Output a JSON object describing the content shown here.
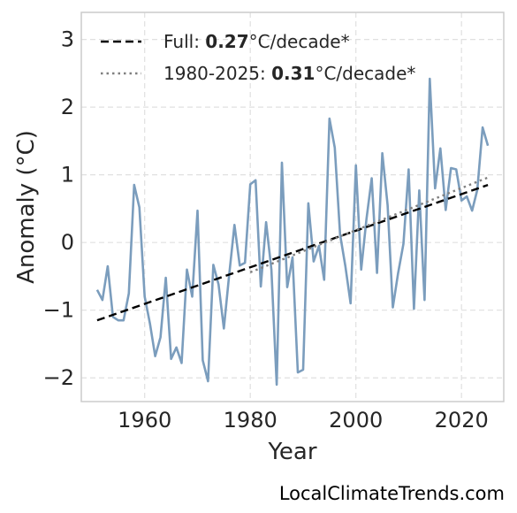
{
  "chart_data": {
    "type": "line",
    "xlabel": "Year",
    "ylabel": "Anomaly (°C)",
    "xlim": [
      1948,
      2028
    ],
    "ylim": [
      -2.35,
      3.4
    ],
    "xticks": [
      1960,
      1980,
      2000,
      2020
    ],
    "yticks": [
      -2,
      -1,
      0,
      1,
      2,
      3
    ],
    "ytick_labels": [
      "−2",
      "−1",
      "0",
      "1",
      "2",
      "3"
    ],
    "grid": true,
    "legend_position": "top-left",
    "series": [
      {
        "color": "#7b9dbd",
        "x": [
          1951,
          1952,
          1953,
          1954,
          1955,
          1956,
          1957,
          1958,
          1959,
          1960,
          1961,
          1962,
          1963,
          1964,
          1965,
          1966,
          1967,
          1968,
          1969,
          1970,
          1971,
          1972,
          1973,
          1974,
          1975,
          1976,
          1977,
          1978,
          1979,
          1980,
          1981,
          1982,
          1983,
          1984,
          1985,
          1986,
          1987,
          1988,
          1989,
          1990,
          1991,
          1992,
          1993,
          1994,
          1995,
          1996,
          1997,
          1998,
          1999,
          2000,
          2001,
          2002,
          2003,
          2004,
          2005,
          2006,
          2007,
          2008,
          2009,
          2010,
          2011,
          2012,
          2013,
          2014,
          2015,
          2016,
          2017,
          2018,
          2019,
          2020,
          2021,
          2022,
          2023,
          2024,
          2025
        ],
        "values": [
          -0.7,
          -0.85,
          -0.35,
          -1.1,
          -1.15,
          -1.15,
          -0.75,
          0.85,
          0.52,
          -0.8,
          -1.2,
          -1.68,
          -1.4,
          -0.52,
          -1.72,
          -1.55,
          -1.78,
          -0.4,
          -0.8,
          0.47,
          -1.74,
          -2.05,
          -0.33,
          -0.62,
          -1.27,
          -0.48,
          0.26,
          -0.34,
          -0.3,
          0.86,
          0.92,
          -0.65,
          0.3,
          -0.4,
          -2.1,
          1.18,
          -0.66,
          -0.22,
          -1.92,
          -1.88,
          0.58,
          -0.28,
          -0.05,
          -0.55,
          1.83,
          1.4,
          0.12,
          -0.35,
          -0.9,
          1.14,
          -0.4,
          0.35,
          0.95,
          -0.45,
          1.32,
          0.55,
          -0.96,
          -0.45,
          -0.02,
          1.08,
          -0.98,
          0.77,
          -0.85,
          2.42,
          0.8,
          1.39,
          0.48,
          1.1,
          1.08,
          0.62,
          0.68,
          0.47,
          0.78,
          1.7,
          1.43
        ]
      }
    ],
    "trends": [
      {
        "label_prefix": "Full: ",
        "label_value": "0.27",
        "label_suffix": "°C/decade*",
        "color": "#000000",
        "dash": "9,5",
        "x": [
          1951,
          2025
        ],
        "y": [
          -1.15,
          0.85
        ]
      },
      {
        "label_prefix": "1980-2025: ",
        "label_value": "0.31",
        "label_suffix": "°C/decade*",
        "color": "#808080",
        "dash": "2.5,4",
        "x": [
          1980,
          2025
        ],
        "y": [
          -0.44,
          0.96
        ]
      }
    ]
  },
  "watermark": "LocalClimateTrends.com"
}
